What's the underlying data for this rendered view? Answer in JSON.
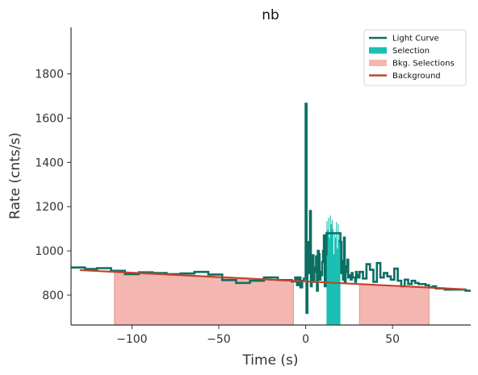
{
  "chart_data": {
    "type": "line",
    "title": "nb",
    "xlabel": "Time (s)",
    "ylabel": "Rate (cnts/s)",
    "xlim": [
      -135,
      95
    ],
    "ylim": [
      665,
      2010
    ],
    "x_ticks": [
      -100,
      -50,
      0,
      50
    ],
    "x_tick_labels": [
      "−100",
      "−50",
      "0",
      "50"
    ],
    "y_ticks": [
      800,
      1000,
      1200,
      1400,
      1600,
      1800
    ],
    "y_tick_labels": [
      "800",
      "1000",
      "1200",
      "1400",
      "1600",
      "1800"
    ],
    "grid": false,
    "legend_position": "top-right",
    "colors": {
      "light_curve": "#0b6e63",
      "selection": "#1bbfb3",
      "bkg_fill": "#f4b6b0",
      "bkg_edge": "#e9928a",
      "background": "#c0432d",
      "axis": "#333333"
    },
    "legend": [
      {
        "label": "Light Curve",
        "kind": "line",
        "color": "#0b6e63"
      },
      {
        "label": "Selection",
        "kind": "patch",
        "color": "#1bbfb3"
      },
      {
        "label": "Bkg. Selections",
        "kind": "patch",
        "color": "#f4b6b0"
      },
      {
        "label": "Background",
        "kind": "line",
        "color": "#c0432d"
      }
    ],
    "background_fit": {
      "name": "Background",
      "x": [
        -130,
        92
      ],
      "y": [
        913,
        826
      ]
    },
    "bkg_selections": [
      {
        "x0": -110,
        "x1": -7
      },
      {
        "x0": 31,
        "x1": 71
      }
    ],
    "selection": [
      {
        "x": 12,
        "y": 1135
      },
      {
        "x": 12.5,
        "y": 1095
      },
      {
        "x": 13,
        "y": 1150
      },
      {
        "x": 13.5,
        "y": 1060
      },
      {
        "x": 14,
        "y": 1160
      },
      {
        "x": 14.5,
        "y": 1120
      },
      {
        "x": 15,
        "y": 1140
      },
      {
        "x": 15.5,
        "y": 1100
      },
      {
        "x": 16,
        "y": 985
      },
      {
        "x": 16.5,
        "y": 1080
      },
      {
        "x": 17,
        "y": 1060
      },
      {
        "x": 17.5,
        "y": 1130
      },
      {
        "x": 18,
        "y": 1010
      },
      {
        "x": 18.5,
        "y": 1120
      },
      {
        "x": 19,
        "y": 1050
      },
      {
        "x": 19.5,
        "y": 1050
      },
      {
        "x": 20,
        "y": 1050
      }
    ],
    "light_curve": {
      "name": "Light Curve",
      "x": [
        -135,
        -127,
        -120,
        -112,
        -104,
        -96,
        -88,
        -80,
        -72,
        -64,
        -56,
        -48,
        -40,
        -32,
        -24,
        -16,
        -8,
        -6,
        -5,
        -4,
        -3,
        -2,
        -1,
        0,
        0.5,
        1,
        1.5,
        2,
        2.5,
        3,
        3.5,
        4,
        4.5,
        5,
        5.5,
        6,
        6.5,
        7,
        7.5,
        8,
        8.5,
        9,
        9.5,
        10,
        10.5,
        11,
        11.5,
        12,
        20,
        20.5,
        21,
        21.5,
        22,
        22.5,
        23,
        23.5,
        24,
        24.5,
        25,
        25.5,
        26,
        26.5,
        27,
        27.5,
        28,
        28.5,
        29,
        29.5,
        30,
        30.5,
        31,
        33,
        35,
        37,
        39,
        41,
        43,
        45,
        47,
        49,
        51,
        53,
        55,
        57,
        59,
        61,
        63,
        65,
        67,
        69,
        71,
        73,
        75,
        80,
        86,
        92
      ],
      "y": [
        925,
        918,
        922,
        910,
        895,
        903,
        900,
        895,
        898,
        905,
        893,
        868,
        855,
        865,
        880,
        868,
        862,
        880,
        845,
        880,
        835,
        865,
        875,
        1665,
        720,
        960,
        1040,
        900,
        1180,
        840,
        935,
        980,
        860,
        905,
        925,
        975,
        820,
        1000,
        985,
        870,
        905,
        890,
        950,
        1000,
        1070,
        840,
        985,
        1080,
        1040,
        900,
        955,
        870,
        1060,
        855,
        930,
        905,
        960,
        880,
        885,
        890,
        870,
        900,
        880,
        880,
        880,
        860,
        905,
        880,
        890,
        880,
        905,
        875,
        940,
        915,
        860,
        945,
        880,
        900,
        885,
        870,
        920,
        865,
        840,
        870,
        850,
        865,
        855,
        850,
        850,
        845,
        835,
        840,
        830,
        825,
        825,
        820
      ]
    }
  }
}
